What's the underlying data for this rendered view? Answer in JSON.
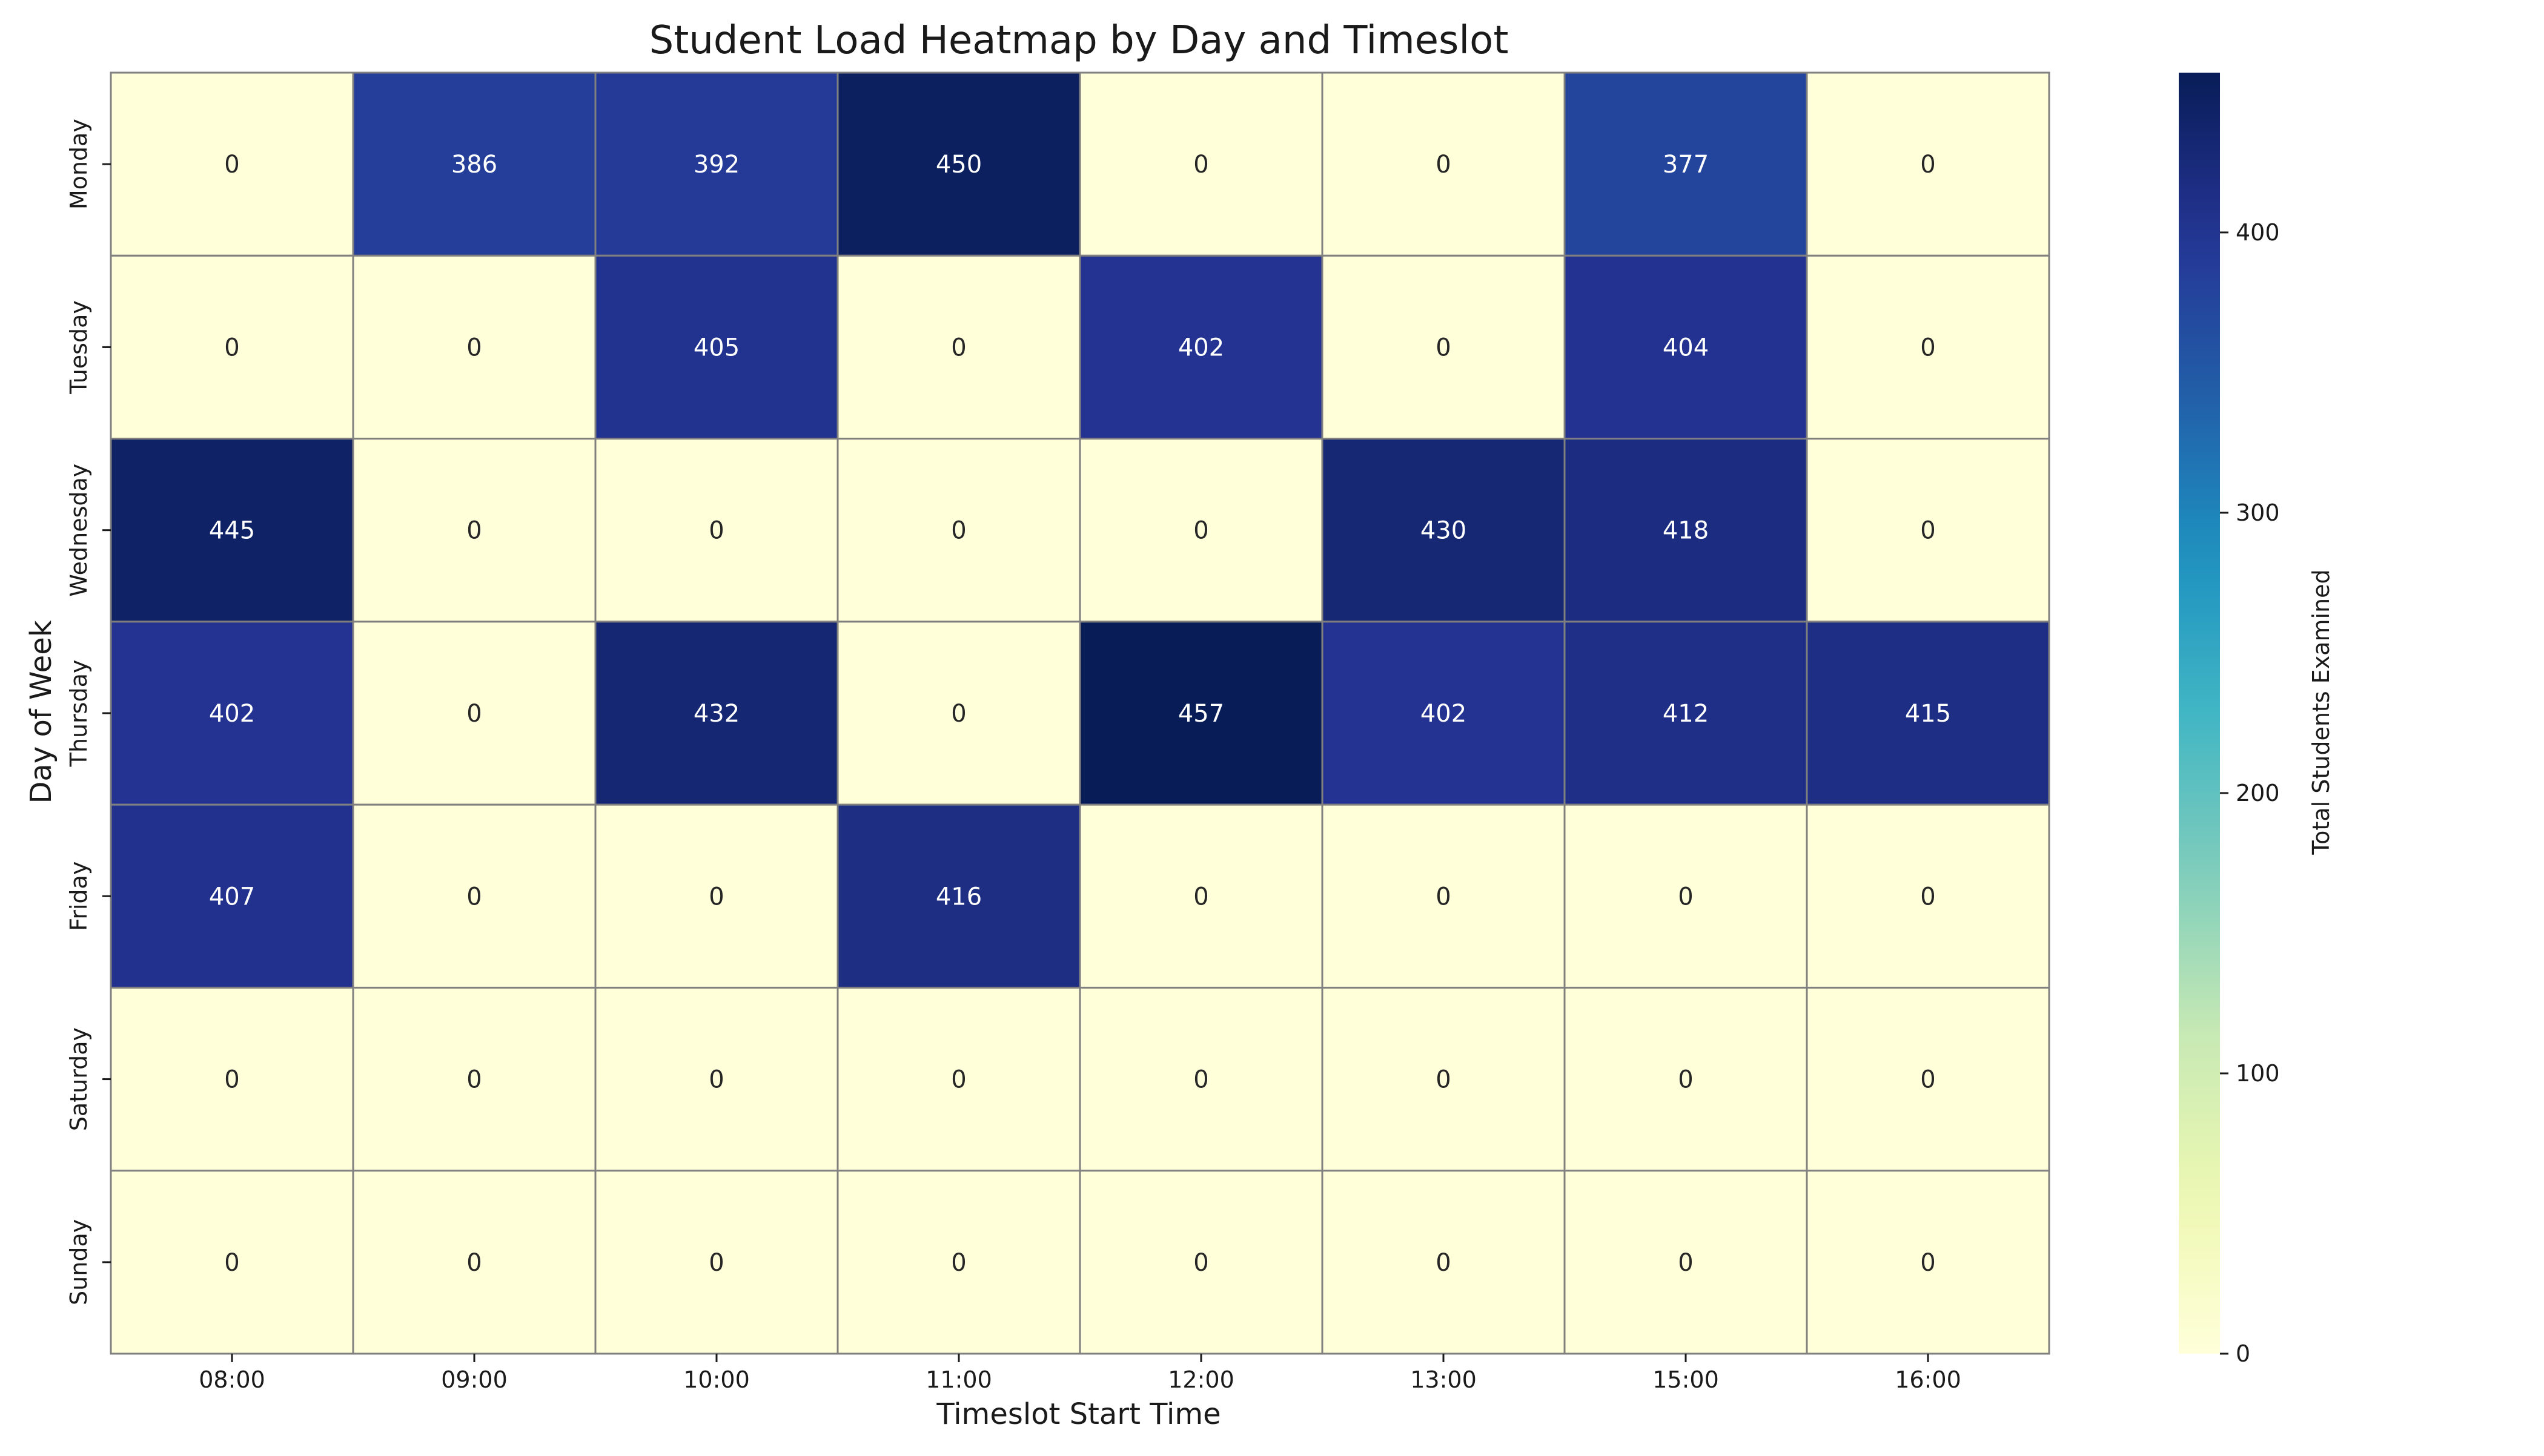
{
  "chart_data": {
    "type": "heatmap",
    "title": "Student Load Heatmap by Day and Timeslot",
    "xlabel": "Timeslot Start Time",
    "ylabel": "Day of Week",
    "x_categories": [
      "08:00",
      "09:00",
      "10:00",
      "11:00",
      "12:00",
      "13:00",
      "15:00",
      "16:00"
    ],
    "y_categories": [
      "Monday",
      "Tuesday",
      "Wednesday",
      "Thursday",
      "Friday",
      "Saturday",
      "Sunday"
    ],
    "values": [
      [
        0,
        386,
        392,
        450,
        0,
        0,
        377,
        0
      ],
      [
        0,
        0,
        405,
        0,
        402,
        0,
        404,
        0
      ],
      [
        445,
        0,
        0,
        0,
        0,
        430,
        418,
        0
      ],
      [
        402,
        0,
        432,
        0,
        457,
        402,
        412,
        415
      ],
      [
        407,
        0,
        0,
        416,
        0,
        0,
        0,
        0
      ],
      [
        0,
        0,
        0,
        0,
        0,
        0,
        0,
        0
      ],
      [
        0,
        0,
        0,
        0,
        0,
        0,
        0,
        0
      ]
    ],
    "colorbar": {
      "label": "Total Students Examined",
      "range": [
        0,
        457
      ],
      "ticks": [
        0,
        100,
        200,
        300,
        400
      ],
      "colormap": "YlGnBu"
    },
    "annotations": "values shown in each cell",
    "grid": "cell borders shown"
  }
}
